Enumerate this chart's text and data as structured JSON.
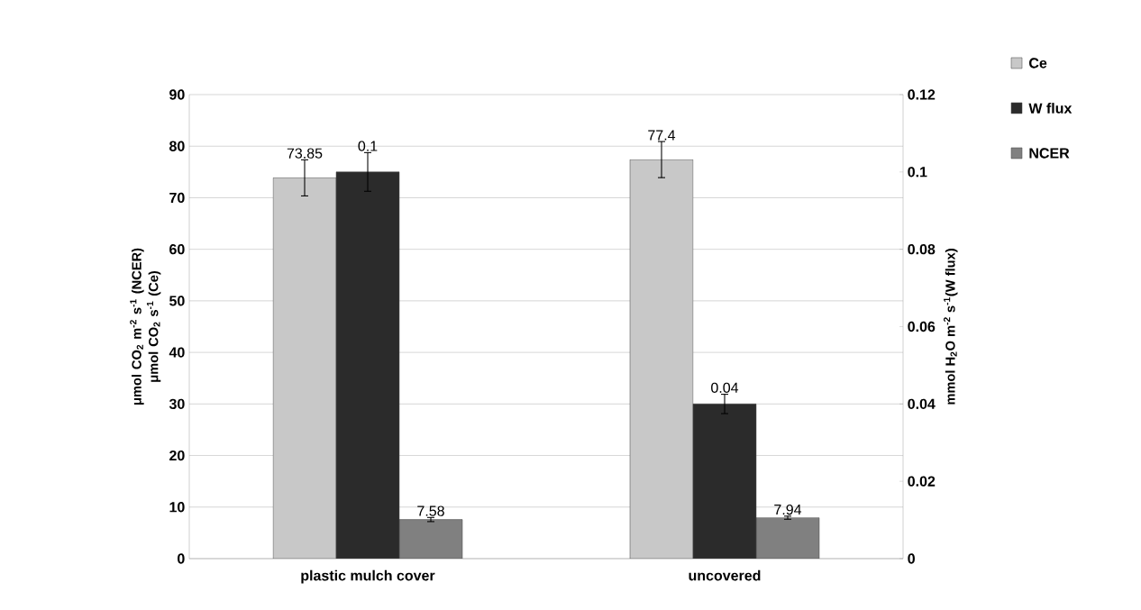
{
  "chart_data": {
    "type": "bar",
    "categories": [
      "plastic mulch cover",
      "uncovered"
    ],
    "series": [
      {
        "name": "Ce",
        "color": "#c8c8c8",
        "values": [
          73.85,
          77.4
        ],
        "errors": [
          3.5,
          3.5
        ]
      },
      {
        "name": "W flux",
        "color": "#2b2b2b",
        "values": [
          0.1,
          0.04
        ],
        "errors": [
          0.005,
          0.0025
        ],
        "axis": "y2"
      },
      {
        "name": "NCER",
        "color": "#808080",
        "values": [
          7.58,
          7.94
        ],
        "errors": [
          0.4,
          0.3
        ]
      }
    ],
    "ylabel": "μmol CO$_{2}$ m$^{-2}$ s$^{-1}$ (NCER) μmol CO$_{2}$ s$^{-1}$ (Ce)",
    "y2label": "mmol H$_{2}$O m$^{-2}$ s$^{-1}$(W flux)",
    "ylim": [
      0,
      90
    ],
    "yticks": [
      0,
      10,
      20,
      30,
      40,
      50,
      60,
      70,
      80,
      90
    ],
    "y2lim": [
      0,
      0.12
    ],
    "y2ticks": [
      0,
      0.02,
      0.04,
      0.06,
      0.08,
      0.1,
      0.12
    ],
    "data_labels": true,
    "grid": "y",
    "legend": "top right"
  }
}
